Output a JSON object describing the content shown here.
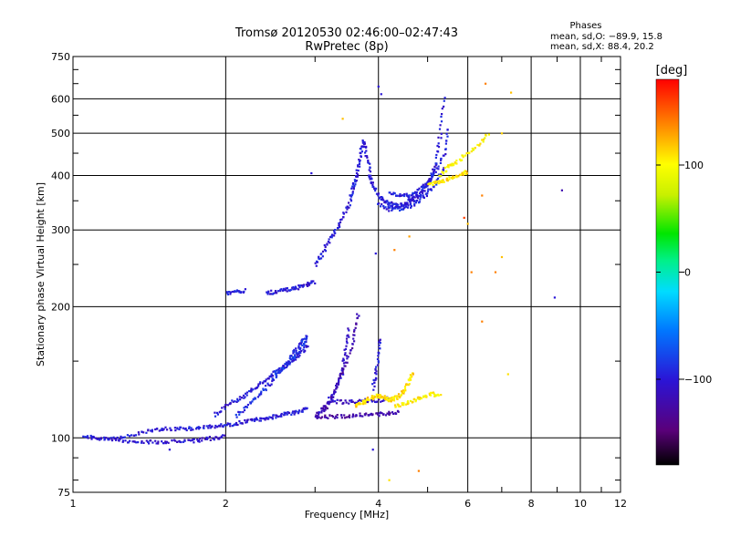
{
  "chart_data": {
    "type": "scatter",
    "title": "Tromsø 20120530 02:46:00–02:47:43",
    "subtitle": "RwPretec (8p)",
    "xlabel": "Frequency [MHz]",
    "ylabel": "Stationary phase Virtual Height [km]",
    "x_scale": "log",
    "y_scale": "log",
    "xlim": [
      1,
      12
    ],
    "ylim": [
      75,
      750
    ],
    "x_ticks": [
      1,
      2,
      4,
      6,
      8,
      10,
      12
    ],
    "x_minor": [
      3,
      5,
      7,
      9,
      11
    ],
    "y_ticks": [
      75,
      100,
      200,
      300,
      400,
      500,
      600,
      750
    ],
    "grid": true,
    "legend": {
      "title": "Phases",
      "lines": [
        "mean, sd,O: −89.9, 15.8",
        "mean, sd,X:  88.4, 20.2"
      ]
    },
    "colorbar": {
      "label": "[deg]",
      "range": [
        -180,
        180
      ],
      "ticks": [
        100,
        0,
        -100
      ]
    },
    "traces": [
      {
        "phase": -100,
        "x": [
          1.05,
          1.1,
          1.2,
          1.3,
          1.4,
          1.5,
          1.6,
          1.7,
          1.8,
          1.9,
          2.0,
          2.1,
          2.2,
          2.3,
          2.4,
          2.5,
          2.6,
          2.7,
          2.8,
          2.9
        ],
        "y": [
          101,
          100,
          99,
          101,
          104,
          105,
          105,
          105,
          106,
          106,
          107,
          108,
          109,
          110,
          111,
          112,
          113,
          114,
          115,
          117
        ]
      },
      {
        "phase": -105,
        "x": [
          1.1,
          1.2,
          1.3,
          1.4,
          1.5,
          1.6,
          1.7,
          1.8,
          1.9,
          2.0
        ],
        "y": [
          100,
          100,
          98,
          98,
          98,
          98,
          98,
          99,
          100,
          101
        ]
      },
      {
        "phase": -100,
        "x": [
          1.9,
          2.0,
          2.1,
          2.2,
          2.3,
          2.4,
          2.5,
          2.6,
          2.7,
          2.8,
          2.9
        ],
        "y": [
          113,
          118,
          122,
          126,
          131,
          136,
          141,
          145,
          150,
          156,
          163
        ]
      },
      {
        "phase": -90,
        "x": [
          2.1,
          2.2,
          2.3,
          2.4,
          2.5,
          2.6,
          2.7,
          2.8,
          2.9
        ],
        "y": [
          112,
          118,
          124,
          130,
          137,
          145,
          155,
          165,
          172
        ]
      },
      {
        "phase": -85,
        "x": [
          2.5,
          2.6,
          2.7,
          2.8,
          2.9
        ],
        "y": [
          140,
          145,
          152,
          160,
          168
        ]
      },
      {
        "phase": -100,
        "x": [
          2.4,
          2.5,
          2.6,
          2.7,
          2.8,
          2.9,
          3.0
        ],
        "y": [
          215,
          216,
          218,
          220,
          222,
          225,
          228
        ]
      },
      {
        "phase": -100,
        "x": [
          2.0,
          2.1,
          2.2
        ],
        "y": [
          215,
          216,
          218
        ]
      },
      {
        "phase": -110,
        "x": [
          3.0,
          3.1,
          3.2,
          3.3,
          3.4,
          3.45,
          3.5
        ],
        "y": [
          112,
          116,
          122,
          130,
          142,
          160,
          180
        ]
      },
      {
        "phase": -120,
        "x": [
          3.1,
          3.2,
          3.3,
          3.4,
          3.5,
          3.6,
          3.65
        ],
        "y": [
          115,
          120,
          130,
          142,
          156,
          175,
          195
        ]
      },
      {
        "phase": -125,
        "x": [
          3.0,
          3.2,
          3.4,
          3.6,
          3.8,
          4.0,
          4.2,
          4.4
        ],
        "y": [
          112,
          112,
          112,
          113,
          113,
          113,
          114,
          115
        ]
      },
      {
        "phase": -110,
        "x": [
          3.2,
          3.4,
          3.6,
          3.8,
          4.0,
          4.2
        ],
        "y": [
          121,
          121,
          121,
          122,
          122,
          123
        ]
      },
      {
        "phase": -100,
        "x": [
          3.9,
          3.95,
          4.0,
          4.02
        ],
        "y": [
          130,
          140,
          155,
          170
        ]
      },
      {
        "phase": -100,
        "x": [
          3.0,
          3.1,
          3.2,
          3.3,
          3.4,
          3.5,
          3.55,
          3.6,
          3.65,
          3.7,
          3.75,
          3.8,
          3.85,
          3.9,
          4.0,
          4.1,
          4.2,
          4.3,
          4.4,
          4.5,
          4.6,
          4.7,
          4.8,
          4.9,
          5.0,
          5.1,
          5.2,
          5.3,
          5.4
        ],
        "y": [
          250,
          265,
          285,
          300,
          320,
          345,
          370,
          390,
          420,
          455,
          480,
          440,
          400,
          380,
          360,
          350,
          345,
          342,
          340,
          345,
          350,
          355,
          360,
          370,
          385,
          400,
          430,
          500,
          620
        ]
      },
      {
        "phase": -95,
        "x": [
          4.0,
          4.2,
          4.4,
          4.6,
          4.8,
          5.0,
          5.2,
          5.4
        ],
        "y": [
          345,
          335,
          335,
          340,
          350,
          365,
          385,
          420
        ]
      },
      {
        "phase": -95,
        "x": [
          4.2,
          4.4,
          4.6,
          4.8,
          5.0,
          5.2,
          5.4,
          5.5
        ],
        "y": [
          365,
          360,
          360,
          370,
          385,
          410,
          450,
          520
        ]
      },
      {
        "phase": 110,
        "x": [
          3.6,
          3.7,
          3.8,
          3.9,
          4.0,
          4.1,
          4.2,
          4.3,
          4.4,
          4.5,
          4.6,
          4.7
        ],
        "y": [
          118,
          120,
          122,
          124,
          125,
          124,
          122,
          123,
          125,
          128,
          135,
          142
        ]
      },
      {
        "phase": 105,
        "x": [
          4.3,
          4.5,
          4.7,
          4.9,
          5.1,
          5.3
        ],
        "y": [
          118,
          120,
          122,
          124,
          126,
          125
        ]
      },
      {
        "phase": 110,
        "x": [
          5.0,
          5.2,
          5.4,
          5.6,
          5.8,
          6.0
        ],
        "y": [
          380,
          385,
          390,
          395,
          400,
          410
        ]
      },
      {
        "phase": 100,
        "x": [
          5.3,
          5.5,
          5.7,
          6.0,
          6.3,
          6.6
        ],
        "y": [
          400,
          420,
          430,
          450,
          470,
          500
        ]
      }
    ],
    "points": [
      {
        "x": 1.55,
        "y": 94,
        "phase": -100
      },
      {
        "x": 2.95,
        "y": 405,
        "phase": -100
      },
      {
        "x": 3.4,
        "y": 540,
        "phase": 120
      },
      {
        "x": 4.0,
        "y": 640,
        "phase": -100
      },
      {
        "x": 4.05,
        "y": 615,
        "phase": -100
      },
      {
        "x": 3.95,
        "y": 265,
        "phase": -100
      },
      {
        "x": 4.3,
        "y": 270,
        "phase": 140
      },
      {
        "x": 4.6,
        "y": 290,
        "phase": 130
      },
      {
        "x": 4.8,
        "y": 84,
        "phase": 140
      },
      {
        "x": 4.2,
        "y": 80,
        "phase": 110
      },
      {
        "x": 3.9,
        "y": 94,
        "phase": -100
      },
      {
        "x": 6.5,
        "y": 650,
        "phase": 140
      },
      {
        "x": 7.3,
        "y": 620,
        "phase": 120
      },
      {
        "x": 6.4,
        "y": 360,
        "phase": 140
      },
      {
        "x": 6.8,
        "y": 240,
        "phase": 140
      },
      {
        "x": 8.9,
        "y": 210,
        "phase": -100
      },
      {
        "x": 9.2,
        "y": 370,
        "phase": -120
      },
      {
        "x": 7.2,
        "y": 140,
        "phase": 110
      },
      {
        "x": 6.4,
        "y": 185,
        "phase": 140
      },
      {
        "x": 6.1,
        "y": 240,
        "phase": 140
      },
      {
        "x": 7.0,
        "y": 500,
        "phase": 115
      },
      {
        "x": 5.9,
        "y": 320,
        "phase": 160
      },
      {
        "x": 7.0,
        "y": 260,
        "phase": 120
      },
      {
        "x": 6.0,
        "y": 310,
        "phase": 120
      }
    ]
  }
}
